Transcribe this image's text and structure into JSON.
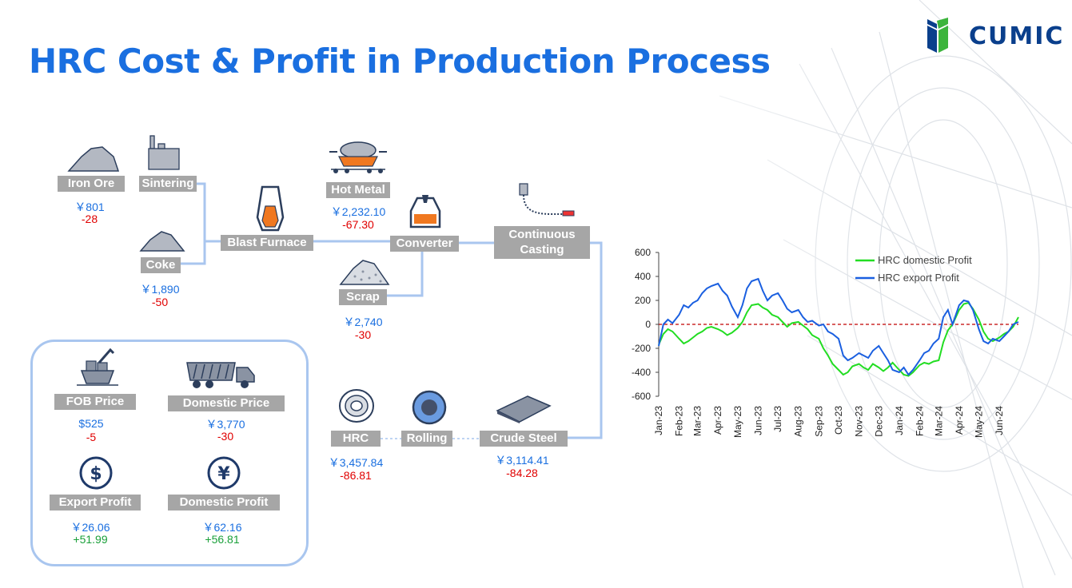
{
  "title": "HRC Cost & Profit in Production Process",
  "logo": {
    "text": "CUMIC",
    "icon": "cumic-leaf-icon",
    "color": "#0a3f8c",
    "accent": "#3cb43c"
  },
  "colors": {
    "title": "#1a6fe0",
    "price": "#1a6fe0",
    "negative": "#e00000",
    "positive": "#1aa03a",
    "label_bg": "#a6a6a6",
    "line": "#a9c6ef"
  },
  "process": {
    "iron_ore": {
      "label": "Iron Ore",
      "price": "￥801",
      "change": "-28"
    },
    "sintering": {
      "label": "Sintering"
    },
    "coke": {
      "label": "Coke",
      "price": "￥1,890",
      "change": "-50"
    },
    "blast_furnace": {
      "label": "Blast Furnace"
    },
    "hot_metal": {
      "label": "Hot Metal",
      "price": "￥2,232.10",
      "change": "-67.30"
    },
    "converter": {
      "label": "Converter"
    },
    "scrap": {
      "label": "Scrap",
      "price": "￥2,740",
      "change": "-30"
    },
    "continuous_casting": {
      "label_line1": "Continuous",
      "label_line2": "Casting"
    },
    "crude_steel": {
      "label": "Crude Steel",
      "price": "￥3,114.41",
      "change": "-84.28"
    },
    "rolling": {
      "label": "Rolling"
    },
    "hrc": {
      "label": "HRC",
      "price": "￥3,457.84",
      "change": "-86.81"
    }
  },
  "summary": {
    "fob": {
      "label": "FOB Price",
      "price": "$525",
      "change": "-5"
    },
    "domestic_price": {
      "label": "Domestic Price",
      "price": "￥3,770",
      "change": "-30"
    },
    "export_profit": {
      "label": "Export Profit",
      "price": "￥26.06",
      "change": "+51.99"
    },
    "domestic_profit": {
      "label": "Domestic Profit",
      "price": "￥62.16",
      "change": "+56.81"
    }
  },
  "chart_data": {
    "type": "line",
    "title": "",
    "xlabel": "",
    "ylabel": "",
    "ylim": [
      -600,
      600
    ],
    "yticks": [
      600,
      400,
      200,
      0,
      -200,
      -400,
      -600
    ],
    "xticks": [
      "Jan-23",
      "Feb-23",
      "Mar-23",
      "Apr-23",
      "May-23",
      "Jun-23",
      "Jul-23",
      "Aug-23",
      "Sep-23",
      "Oct-23",
      "Nov-23",
      "Dec-23",
      "Jan-24",
      "Feb-24",
      "Mar-24",
      "Apr-24",
      "May-24",
      "Jun-24"
    ],
    "xlim": [
      "2023-01-01",
      "2024-06-30"
    ],
    "legend": "top-right",
    "zero_line": {
      "color": "#c00000",
      "style": "dashed"
    },
    "series": [
      {
        "name": "HRC domestic Profit",
        "color": "#22dd22",
        "x": [
          "2023-01-01",
          "2023-01-08",
          "2023-01-15",
          "2023-01-22",
          "2023-02-01",
          "2023-02-08",
          "2023-02-15",
          "2023-02-22",
          "2023-03-01",
          "2023-03-08",
          "2023-03-15",
          "2023-03-22",
          "2023-04-01",
          "2023-04-08",
          "2023-04-15",
          "2023-04-22",
          "2023-05-01",
          "2023-05-08",
          "2023-05-15",
          "2023-05-22",
          "2023-06-01",
          "2023-06-08",
          "2023-06-15",
          "2023-06-22",
          "2023-07-01",
          "2023-07-08",
          "2023-07-15",
          "2023-07-22",
          "2023-08-01",
          "2023-08-08",
          "2023-08-15",
          "2023-08-22",
          "2023-09-01",
          "2023-09-08",
          "2023-09-15",
          "2023-09-22",
          "2023-10-01",
          "2023-10-08",
          "2023-10-15",
          "2023-10-22",
          "2023-11-01",
          "2023-11-08",
          "2023-11-15",
          "2023-11-22",
          "2023-12-01",
          "2023-12-08",
          "2023-12-15",
          "2023-12-22",
          "2024-01-01",
          "2024-01-08",
          "2024-01-15",
          "2024-01-22",
          "2024-02-01",
          "2024-02-08",
          "2024-02-15",
          "2024-02-22",
          "2024-03-01",
          "2024-03-08",
          "2024-03-15",
          "2024-03-22",
          "2024-04-01",
          "2024-04-08",
          "2024-04-15",
          "2024-04-22",
          "2024-05-01",
          "2024-05-08",
          "2024-05-15",
          "2024-05-22",
          "2024-06-01",
          "2024-06-08",
          "2024-06-15",
          "2024-06-22",
          "2024-06-30"
        ],
        "y": [
          -170,
          -80,
          -40,
          -60,
          -120,
          -160,
          -140,
          -110,
          -80,
          -60,
          -30,
          -20,
          -40,
          -60,
          -90,
          -70,
          -30,
          20,
          100,
          160,
          170,
          140,
          120,
          80,
          60,
          20,
          -20,
          10,
          20,
          -10,
          -40,
          -90,
          -120,
          -200,
          -260,
          -330,
          -380,
          -420,
          -400,
          -350,
          -330,
          -360,
          -380,
          -330,
          -360,
          -390,
          -360,
          -320,
          -380,
          -420,
          -430,
          -400,
          -340,
          -320,
          -330,
          -310,
          -300,
          -150,
          -50,
          0,
          120,
          170,
          180,
          130,
          40,
          -60,
          -120,
          -140,
          -110,
          -80,
          -60,
          -20,
          60
        ]
      },
      {
        "name": "HRC export Profit",
        "color": "#1a5fe0",
        "x": [
          "2023-01-01",
          "2023-01-08",
          "2023-01-15",
          "2023-01-22",
          "2023-02-01",
          "2023-02-08",
          "2023-02-15",
          "2023-02-22",
          "2023-03-01",
          "2023-03-08",
          "2023-03-15",
          "2023-03-22",
          "2023-04-01",
          "2023-04-08",
          "2023-04-15",
          "2023-04-22",
          "2023-05-01",
          "2023-05-08",
          "2023-05-15",
          "2023-05-22",
          "2023-06-01",
          "2023-06-08",
          "2023-06-15",
          "2023-06-22",
          "2023-07-01",
          "2023-07-08",
          "2023-07-15",
          "2023-07-22",
          "2023-08-01",
          "2023-08-08",
          "2023-08-15",
          "2023-08-22",
          "2023-09-01",
          "2023-09-08",
          "2023-09-15",
          "2023-09-22",
          "2023-10-01",
          "2023-10-08",
          "2023-10-15",
          "2023-10-22",
          "2023-11-01",
          "2023-11-08",
          "2023-11-15",
          "2023-11-22",
          "2023-12-01",
          "2023-12-08",
          "2023-12-15",
          "2023-12-22",
          "2024-01-01",
          "2024-01-08",
          "2024-01-15",
          "2024-01-22",
          "2024-02-01",
          "2024-02-08",
          "2024-02-15",
          "2024-02-22",
          "2024-03-01",
          "2024-03-08",
          "2024-03-15",
          "2024-03-22",
          "2024-04-01",
          "2024-04-08",
          "2024-04-15",
          "2024-04-22",
          "2024-05-01",
          "2024-05-08",
          "2024-05-15",
          "2024-05-22",
          "2024-06-01",
          "2024-06-08",
          "2024-06-15",
          "2024-06-22",
          "2024-06-30"
        ],
        "y": [
          -180,
          0,
          40,
          10,
          80,
          160,
          140,
          180,
          200,
          260,
          300,
          320,
          340,
          280,
          240,
          150,
          60,
          160,
          300,
          360,
          380,
          280,
          200,
          240,
          260,
          200,
          130,
          100,
          120,
          60,
          20,
          30,
          -10,
          0,
          -60,
          -80,
          -120,
          -260,
          -300,
          -280,
          -240,
          -260,
          -280,
          -220,
          -180,
          -240,
          -300,
          -380,
          -400,
          -360,
          -420,
          -380,
          -300,
          -240,
          -220,
          -160,
          -120,
          60,
          120,
          0,
          160,
          200,
          190,
          120,
          -40,
          -140,
          -160,
          -120,
          -140,
          -100,
          -60,
          0,
          20
        ]
      }
    ]
  }
}
